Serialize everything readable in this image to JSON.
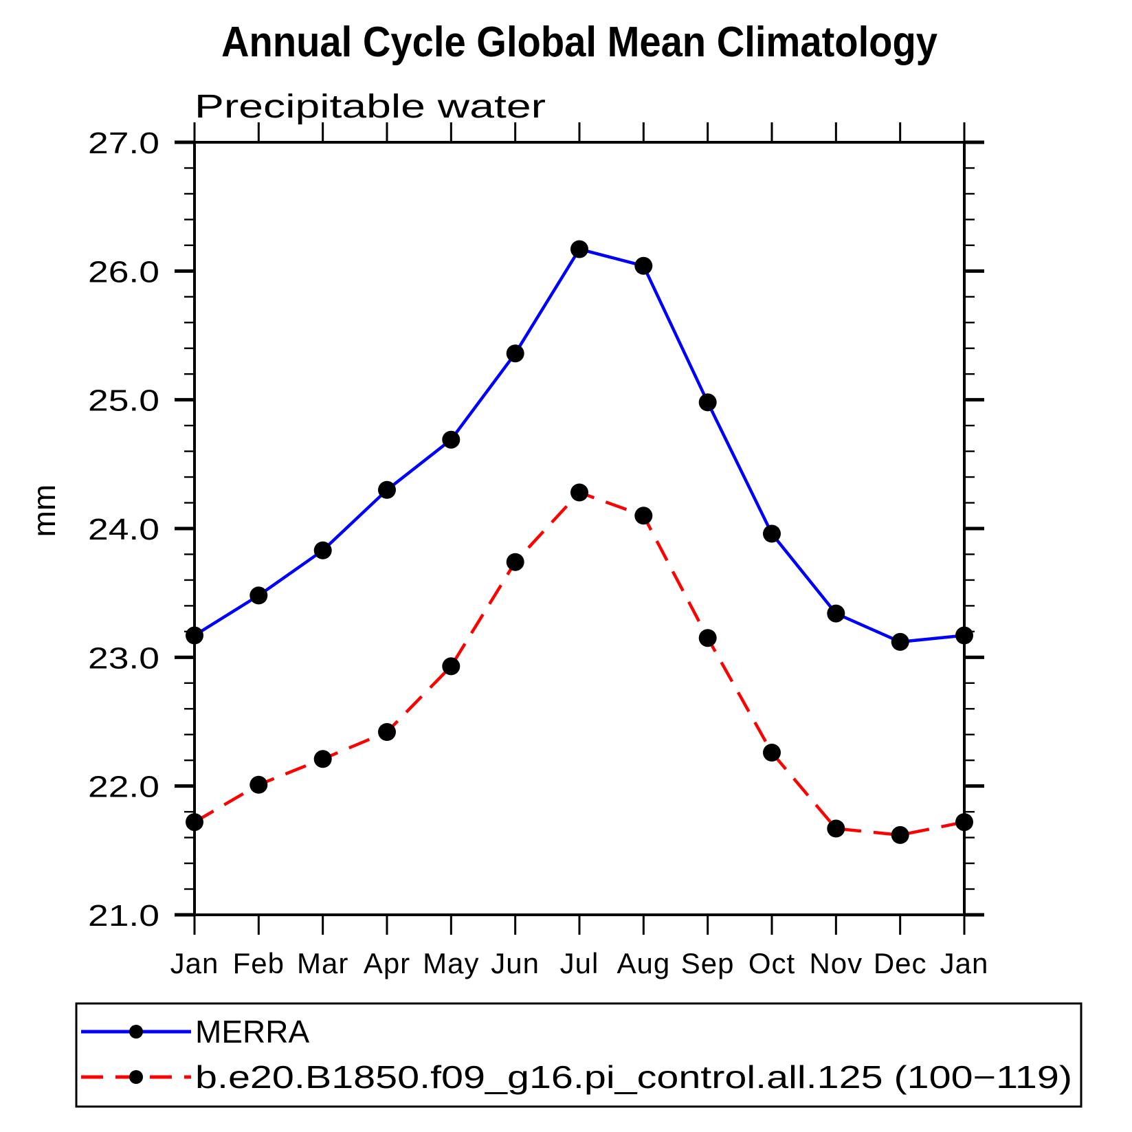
{
  "page": {
    "background_color": "#ffffff",
    "text_color": "#000000"
  },
  "chart_data": {
    "type": "line",
    "title": "Annual Cycle Global Mean Climatology",
    "subtitle": "Precipitable water",
    "ylabel": "mm",
    "xlabel": "",
    "x_categories": [
      "Jan",
      "Feb",
      "Mar",
      "Apr",
      "May",
      "Jun",
      "Jul",
      "Aug",
      "Sep",
      "Oct",
      "Nov",
      "Dec",
      "Jan"
    ],
    "ylim": [
      21.0,
      27.0
    ],
    "y_major_tick_labels": [
      "27.0",
      "26.0",
      "25.0",
      "24.0",
      "23.0",
      "22.0",
      "21.0"
    ],
    "y_major_step": 1.0,
    "y_minor_step": 0.2,
    "grid": false,
    "legend_position": "bottom-left",
    "series": [
      {
        "name": "MERRA",
        "line_color": "#0000ff",
        "line_style": "solid",
        "marker": "filled-circle",
        "marker_color": "#000000",
        "values": [
          23.17,
          23.48,
          23.83,
          24.3,
          24.69,
          25.36,
          26.17,
          26.04,
          24.98,
          23.96,
          23.34,
          23.12,
          23.17
        ]
      },
      {
        "name": "b.e20.B1850.f09_g16.pi_control.all.125 (100−119)",
        "line_color": "#ff0000",
        "line_style": "dashed",
        "marker": "filled-circle",
        "marker_color": "#000000",
        "values": [
          21.72,
          22.01,
          22.21,
          22.42,
          22.93,
          23.74,
          24.28,
          24.1,
          23.15,
          22.26,
          21.67,
          21.62,
          21.72
        ]
      }
    ]
  }
}
